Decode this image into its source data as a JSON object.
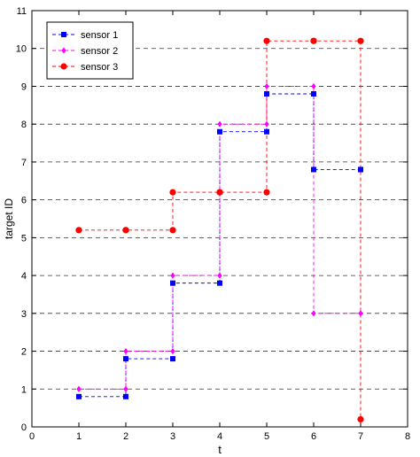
{
  "chart_data": {
    "type": "line",
    "xlabel": "t",
    "ylabel": "target ID",
    "xlim": [
      0,
      8
    ],
    "ylim": [
      0,
      11
    ],
    "x_ticks": [
      0,
      1,
      2,
      3,
      4,
      5,
      6,
      7,
      8
    ],
    "y_ticks": [
      0,
      1,
      2,
      3,
      4,
      5,
      6,
      7,
      8,
      9,
      10,
      11
    ],
    "grid": "horizontal dashed",
    "legend_position": "top-left",
    "step": "post",
    "series": [
      {
        "name": "sensor 1",
        "color": "#0000ff",
        "marker": "square",
        "x": [
          1,
          2,
          3,
          4,
          5,
          6,
          7
        ],
        "y": [
          0.8,
          1.8,
          3.8,
          7.8,
          8.8,
          6.8,
          6.8
        ]
      },
      {
        "name": "sensor 2",
        "color": "#ff00ff",
        "marker": "diamond",
        "x": [
          1,
          2,
          3,
          4,
          5,
          6,
          7
        ],
        "y": [
          1,
          2,
          4,
          8,
          9,
          3,
          3
        ]
      },
      {
        "name": "sensor 3",
        "color": "#ff0000",
        "marker": "circle",
        "x": [
          1,
          2,
          3,
          4,
          5,
          6,
          7
        ],
        "y": [
          5.2,
          5.2,
          6.2,
          6.2,
          10.2,
          10.2,
          0.2
        ]
      }
    ],
    "extra_points": [
      {
        "series": "sensor 1",
        "x": [
          2,
          3,
          4,
          5,
          6,
          7
        ],
        "y": [
          0.8,
          1.8,
          3.8,
          7.8,
          8.8,
          6.8
        ]
      },
      {
        "series": "sensor 2",
        "x": [
          2,
          3,
          4,
          5,
          6,
          7
        ],
        "y": [
          1,
          2,
          4,
          8,
          9,
          3
        ]
      },
      {
        "series": "sensor 3",
        "x": [
          2,
          3,
          4,
          5,
          6,
          7
        ],
        "y": [
          5.2,
          5.2,
          6.2,
          6.2,
          10.2,
          10.2
        ]
      }
    ]
  }
}
